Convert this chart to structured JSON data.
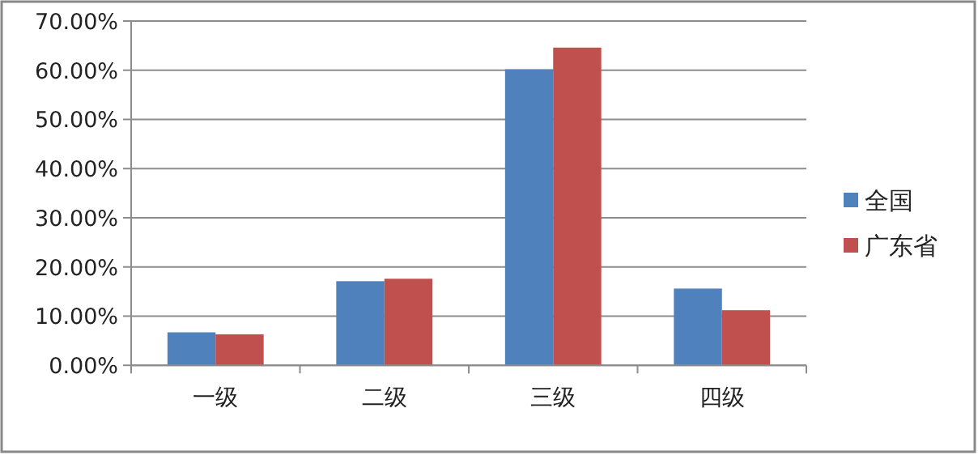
{
  "chart_data": {
    "type": "bar",
    "categories": [
      "一级",
      "二级",
      "三级",
      "四级"
    ],
    "series": [
      {
        "name": "全国",
        "color": "#4f81bd",
        "values": [
          6.7,
          17.1,
          60.2,
          15.6
        ]
      },
      {
        "name": "广东省",
        "color": "#c0504d",
        "values": [
          6.3,
          17.6,
          64.6,
          11.2
        ]
      }
    ],
    "ylim": [
      0,
      70
    ],
    "yticks": [
      {
        "value": 0,
        "label": "0.00%"
      },
      {
        "value": 10,
        "label": "10.00%"
      },
      {
        "value": 20,
        "label": "20.00%"
      },
      {
        "value": 30,
        "label": "30.00%"
      },
      {
        "value": 40,
        "label": "40.00%"
      },
      {
        "value": 50,
        "label": "50.00%"
      },
      {
        "value": 60,
        "label": "60.00%"
      },
      {
        "value": 70,
        "label": "70.00%"
      }
    ],
    "grid": "y",
    "legend": "right"
  }
}
